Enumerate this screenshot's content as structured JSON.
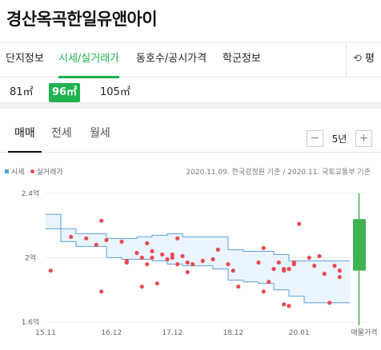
{
  "title": "경산옥곡한일유앤아이",
  "nav": {
    "tabs": [
      "단지정보",
      "시세/실거래가",
      "동호수/공시가격",
      "학군정보"
    ],
    "refresh_label": "평"
  },
  "areas": [
    "81㎡",
    "96㎡",
    "105㎡"
  ],
  "trade_tabs": [
    "매매",
    "전세",
    "월세"
  ],
  "period": {
    "value": "5년",
    "minus": "−",
    "plus": "+"
  },
  "legend": {
    "series": "시세",
    "points": "실거래가"
  },
  "source": "2020.11.09. 한국감정원 기준 / 2020.11. 국토교통부 기준",
  "colors": {
    "accent": "#1fb24b",
    "band": "#5aa0e0",
    "band_fill": "#eaf4fc",
    "point": "#e84b55",
    "ask": "#3fb34f"
  },
  "chart_data": {
    "type": "scatter",
    "title": "",
    "xlabel": "",
    "ylabel": "",
    "y_ticks": [
      "2.4억",
      "2억",
      "1.6억"
    ],
    "x_ticks": [
      "15.11",
      "16.12",
      "17.12",
      "18.12",
      "20.01",
      "매물가격"
    ],
    "ylim": [
      1.6,
      2.4
    ],
    "xlim": [
      "2015-11",
      "2020-11"
    ],
    "y_unit": "억",
    "price_band": {
      "name": "시세",
      "x": [
        "2015-11",
        "2016-02",
        "2016-05",
        "2016-08",
        "2016-11",
        "2017-02",
        "2017-05",
        "2017-08",
        "2017-11",
        "2018-02",
        "2018-05",
        "2018-08",
        "2018-11",
        "2019-02",
        "2019-05",
        "2019-08",
        "2019-11",
        "2020-02",
        "2020-05",
        "2020-08",
        "2020-11"
      ],
      "upper": [
        2.27,
        2.18,
        2.15,
        2.15,
        2.12,
        2.12,
        2.13,
        2.14,
        2.15,
        2.13,
        2.13,
        2.13,
        2.05,
        2.04,
        2.04,
        2.02,
        1.98,
        1.98,
        1.98,
        1.98,
        1.98
      ],
      "lower": [
        2.18,
        2.1,
        2.07,
        2.07,
        2.0,
        1.99,
        1.99,
        1.98,
        1.96,
        1.95,
        1.95,
        1.93,
        1.86,
        1.85,
        1.84,
        1.8,
        1.76,
        1.72,
        1.72,
        1.72,
        1.72
      ]
    },
    "transactions": {
      "name": "실거래가",
      "x": [
        "2015-12",
        "2016-04",
        "2016-07",
        "2016-09",
        "2016-10",
        "2016-10",
        "2016-11",
        "2017-02",
        "2017-03",
        "2017-03",
        "2017-05",
        "2017-06",
        "2017-06",
        "2017-07",
        "2017-07",
        "2017-08",
        "2017-08",
        "2017-09",
        "2017-10",
        "2017-11",
        "2017-12",
        "2017-12",
        "2018-01",
        "2018-01",
        "2018-02",
        "2018-03",
        "2018-03",
        "2018-04",
        "2018-06",
        "2018-08",
        "2018-09",
        "2018-11",
        "2018-12",
        "2019-01",
        "2019-05",
        "2019-06",
        "2019-06",
        "2019-07",
        "2019-08",
        "2019-09",
        "2019-10",
        "2019-10",
        "2019-10",
        "2019-11",
        "2019-11",
        "2019-12",
        "2019-12",
        "2020-01",
        "2020-03",
        "2020-04",
        "2020-05",
        "2020-06",
        "2020-07",
        "2020-08",
        "2020-09",
        "2020-09"
      ],
      "y": [
        1.92,
        2.13,
        2.12,
        2.08,
        1.79,
        2.23,
        2.11,
        2.1,
        1.98,
        1.97,
        2.03,
        2.0,
        1.82,
        1.96,
        2.09,
        2.04,
        2.0,
        1.84,
        2.02,
        1.99,
        2.02,
        2.0,
        1.96,
        2.12,
        2.01,
        1.91,
        1.97,
        1.96,
        1.98,
        1.99,
        2.05,
        1.96,
        1.92,
        1.82,
        1.97,
        1.79,
        2.06,
        1.85,
        1.93,
        1.97,
        1.93,
        1.92,
        1.71,
        1.7,
        1.93,
        1.97,
        1.96,
        2.21,
        2.0,
        1.95,
        2.01,
        1.9,
        1.72,
        1.95,
        1.92,
        1.88
      ]
    },
    "ask_price": {
      "name": "매물가격",
      "min": 1.92,
      "max": 2.24
    }
  }
}
